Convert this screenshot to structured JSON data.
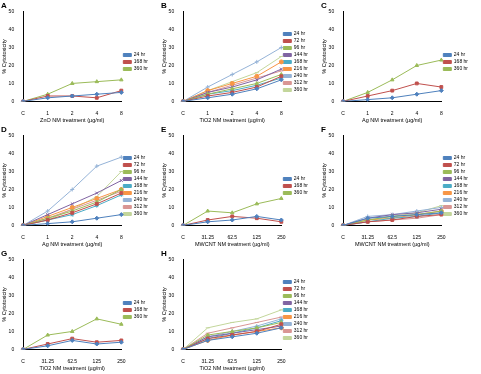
{
  "chart_data": [
    {
      "type": "line",
      "title": "A",
      "x_label": "ZnO NM treatment (µg/ml)",
      "y_label": "% Cytotoxicity",
      "categories": [
        "C",
        "1",
        "2",
        "4",
        "8"
      ],
      "ylim": [
        0,
        50
      ],
      "yticks": [
        0,
        10,
        20,
        30,
        40,
        50
      ],
      "grid": false,
      "legend": "right",
      "series": [
        {
          "name": "24 hr",
          "color": "#4f81bd",
          "marker": "diamond",
          "values": [
            0,
            2,
            3,
            4,
            5
          ]
        },
        {
          "name": "168 hr",
          "color": "#c0504d",
          "marker": "square",
          "values": [
            0,
            3,
            3,
            2,
            6
          ]
        },
        {
          "name": "360 hr",
          "color": "#9bbb59",
          "marker": "triangle",
          "values": [
            0,
            4,
            10,
            11,
            12
          ]
        }
      ]
    },
    {
      "type": "line",
      "title": "B",
      "x_label": "TiO2 NM treatment (µg/ml)",
      "y_label": "% Cytotoxicity",
      "categories": [
        "C",
        "1",
        "2",
        "4",
        "8"
      ],
      "ylim": [
        0,
        50
      ],
      "yticks": [
        0,
        10,
        20,
        30,
        40,
        50
      ],
      "grid": false,
      "legend": "right",
      "series": [
        {
          "name": "24 hr",
          "color": "#4f81bd",
          "marker": "diamond",
          "values": [
            0,
            2,
            4,
            7,
            12
          ]
        },
        {
          "name": "72 hr",
          "color": "#c0504d",
          "marker": "square",
          "values": [
            0,
            3,
            5,
            8,
            14
          ]
        },
        {
          "name": "96 hr",
          "color": "#9bbb59",
          "marker": "triangle",
          "values": [
            0,
            4,
            7,
            10,
            15
          ]
        },
        {
          "name": "144 hr",
          "color": "#8064a2",
          "marker": "cross",
          "values": [
            0,
            5,
            8,
            12,
            18
          ]
        },
        {
          "name": "168 hr",
          "color": "#4bacc6",
          "marker": "star",
          "values": [
            0,
            4,
            6,
            9,
            13
          ]
        },
        {
          "name": "216 hr",
          "color": "#f79646",
          "marker": "circle",
          "values": [
            0,
            6,
            10,
            14,
            22
          ]
        },
        {
          "name": "240 hr",
          "color": "#95b3d7",
          "marker": "plus",
          "values": [
            0,
            8,
            15,
            22,
            30
          ]
        },
        {
          "name": "312 hr",
          "color": "#d99694",
          "marker": "dash",
          "values": [
            0,
            5,
            9,
            13,
            17
          ]
        },
        {
          "name": "360 hr",
          "color": "#c3d69b",
          "marker": "dash",
          "values": [
            0,
            6,
            11,
            16,
            25
          ]
        }
      ]
    },
    {
      "type": "line",
      "title": "C",
      "x_label": "Ag NM treatment (µg/ml)",
      "y_label": "% Cytotoxicity",
      "categories": [
        "C",
        "1",
        "2",
        "4",
        "8"
      ],
      "ylim": [
        0,
        50
      ],
      "yticks": [
        0,
        10,
        20,
        30,
        40,
        50
      ],
      "grid": false,
      "legend": "right",
      "series": [
        {
          "name": "24 hr",
          "color": "#4f81bd",
          "marker": "diamond",
          "values": [
            0,
            1,
            2,
            4,
            6
          ]
        },
        {
          "name": "168 hr",
          "color": "#c0504d",
          "marker": "square",
          "values": [
            0,
            3,
            6,
            10,
            8
          ]
        },
        {
          "name": "360 hr",
          "color": "#9bbb59",
          "marker": "triangle",
          "values": [
            0,
            5,
            12,
            20,
            23
          ]
        }
      ]
    },
    {
      "type": "line",
      "title": "D",
      "x_label": "Ag NM treatment (µg/ml)",
      "y_label": "% Cytotoxicity",
      "categories": [
        "C",
        "1",
        "2",
        "4",
        "8"
      ],
      "ylim": [
        0,
        50
      ],
      "yticks": [
        0,
        10,
        20,
        30,
        40,
        50
      ],
      "grid": false,
      "legend": "right",
      "series": [
        {
          "name": "24 hr",
          "color": "#4f81bd",
          "marker": "diamond",
          "values": [
            0,
            1,
            2,
            4,
            6
          ]
        },
        {
          "name": "72 hr",
          "color": "#c0504d",
          "marker": "square",
          "values": [
            0,
            3,
            7,
            12,
            18
          ]
        },
        {
          "name": "96 hr",
          "color": "#9bbb59",
          "marker": "triangle",
          "values": [
            0,
            4,
            8,
            13,
            20
          ]
        },
        {
          "name": "144 hr",
          "color": "#8064a2",
          "marker": "cross",
          "values": [
            0,
            6,
            12,
            18,
            25
          ]
        },
        {
          "name": "168 hr",
          "color": "#4bacc6",
          "marker": "star",
          "values": [
            0,
            3,
            6,
            11,
            17
          ]
        },
        {
          "name": "216 hr",
          "color": "#f79646",
          "marker": "circle",
          "values": [
            0,
            5,
            10,
            15,
            20
          ]
        },
        {
          "name": "240 hr",
          "color": "#95b3d7",
          "marker": "plus",
          "values": [
            0,
            8,
            20,
            33,
            38
          ]
        },
        {
          "name": "312 hr",
          "color": "#d99694",
          "marker": "dash",
          "values": [
            0,
            4,
            9,
            14,
            19
          ]
        },
        {
          "name": "360 hr",
          "color": "#c3d69b",
          "marker": "dash",
          "values": [
            0,
            3,
            9,
            16,
            30
          ]
        }
      ]
    },
    {
      "type": "line",
      "title": "E",
      "x_label": "MWCNT NM treatment (µg/ml)",
      "y_label": "% Cytotoxicity",
      "categories": [
        "C",
        "31.25",
        "62.5",
        "125",
        "250"
      ],
      "ylim": [
        0,
        50
      ],
      "yticks": [
        0,
        10,
        20,
        30,
        40,
        50
      ],
      "grid": false,
      "legend": "right",
      "series": [
        {
          "name": "24 hr",
          "color": "#4f81bd",
          "marker": "diamond",
          "values": [
            0,
            2,
            3,
            5,
            3
          ]
        },
        {
          "name": "168 hr",
          "color": "#c0504d",
          "marker": "square",
          "values": [
            0,
            3,
            5,
            4,
            2
          ]
        },
        {
          "name": "360 hr",
          "color": "#9bbb59",
          "marker": "triangle",
          "values": [
            0,
            8,
            7,
            12,
            15
          ]
        }
      ]
    },
    {
      "type": "line",
      "title": "F",
      "x_label": "MWCNT NM treatment (µg/ml)",
      "y_label": "% Cytotoxicity",
      "categories": [
        "C",
        "31.25",
        "62.5",
        "125",
        "250"
      ],
      "ylim": [
        0,
        50
      ],
      "yticks": [
        0,
        10,
        20,
        30,
        40,
        50
      ],
      "grid": false,
      "legend": "right",
      "series": [
        {
          "name": "24 hr",
          "color": "#4f81bd",
          "marker": "diamond",
          "values": [
            0,
            4,
            5,
            6,
            7
          ]
        },
        {
          "name": "72 hr",
          "color": "#c0504d",
          "marker": "square",
          "values": [
            0,
            2,
            3,
            5,
            6
          ]
        },
        {
          "name": "96 hr",
          "color": "#9bbb59",
          "marker": "triangle",
          "values": [
            0,
            3,
            5,
            6,
            8
          ]
        },
        {
          "name": "144 hr",
          "color": "#8064a2",
          "marker": "cross",
          "values": [
            0,
            4,
            6,
            7,
            9
          ]
        },
        {
          "name": "168 hr",
          "color": "#4bacc6",
          "marker": "star",
          "values": [
            0,
            2,
            4,
            5,
            7
          ]
        },
        {
          "name": "216 hr",
          "color": "#f79646",
          "marker": "circle",
          "values": [
            0,
            3,
            4,
            6,
            8
          ]
        },
        {
          "name": "240 hr",
          "color": "#95b3d7",
          "marker": "plus",
          "values": [
            0,
            5,
            6,
            8,
            10
          ]
        },
        {
          "name": "312 hr",
          "color": "#d99694",
          "marker": "dash",
          "values": [
            0,
            2,
            3,
            4,
            6
          ]
        },
        {
          "name": "360 hr",
          "color": "#c3d69b",
          "marker": "dash",
          "values": [
            0,
            3,
            5,
            7,
            11
          ]
        }
      ]
    },
    {
      "type": "line",
      "title": "G",
      "x_label": "TiO2 NM treatment (µg/ml)",
      "y_label": "% Cytotoxicity",
      "categories": [
        "C",
        "31.25",
        "62.5",
        "125",
        "250"
      ],
      "ylim": [
        0,
        50
      ],
      "yticks": [
        0,
        10,
        20,
        30,
        40,
        50
      ],
      "grid": false,
      "legend": "right",
      "series": [
        {
          "name": "24 hr",
          "color": "#4f81bd",
          "marker": "diamond",
          "values": [
            0,
            2,
            5,
            3,
            4
          ]
        },
        {
          "name": "168 hr",
          "color": "#c0504d",
          "marker": "square",
          "values": [
            0,
            3,
            6,
            4,
            5
          ]
        },
        {
          "name": "360 hr",
          "color": "#9bbb59",
          "marker": "triangle",
          "values": [
            0,
            8,
            10,
            17,
            14
          ]
        }
      ]
    },
    {
      "type": "line",
      "title": "H",
      "x_label": "TiO2 NM treatment (µg/ml)",
      "y_label": "% Cytotoxicity",
      "categories": [
        "C",
        "31.25",
        "62.5",
        "125",
        "250"
      ],
      "ylim": [
        0,
        50
      ],
      "yticks": [
        0,
        10,
        20,
        30,
        40,
        50
      ],
      "grid": false,
      "legend": "right",
      "series": [
        {
          "name": "24 hr",
          "color": "#4f81bd",
          "marker": "diamond",
          "values": [
            0,
            5,
            7,
            9,
            12
          ]
        },
        {
          "name": "72 hr",
          "color": "#c0504d",
          "marker": "square",
          "values": [
            0,
            6,
            8,
            10,
            14
          ]
        },
        {
          "name": "96 hr",
          "color": "#9bbb59",
          "marker": "triangle",
          "values": [
            0,
            8,
            10,
            12,
            15
          ]
        },
        {
          "name": "144 hr",
          "color": "#8064a2",
          "marker": "cross",
          "values": [
            0,
            7,
            9,
            11,
            13
          ]
        },
        {
          "name": "168 hr",
          "color": "#4bacc6",
          "marker": "star",
          "values": [
            0,
            6,
            9,
            12,
            16
          ]
        },
        {
          "name": "216 hr",
          "color": "#f79646",
          "marker": "circle",
          "values": [
            0,
            5,
            8,
            10,
            12
          ]
        },
        {
          "name": "240 hr",
          "color": "#95b3d7",
          "marker": "plus",
          "values": [
            0,
            7,
            10,
            13,
            17
          ]
        },
        {
          "name": "312 hr",
          "color": "#d99694",
          "marker": "dash",
          "values": [
            0,
            9,
            12,
            15,
            18
          ]
        },
        {
          "name": "360 hr",
          "color": "#c3d69b",
          "marker": "dash",
          "values": [
            0,
            12,
            15,
            17,
            22
          ]
        }
      ]
    }
  ]
}
